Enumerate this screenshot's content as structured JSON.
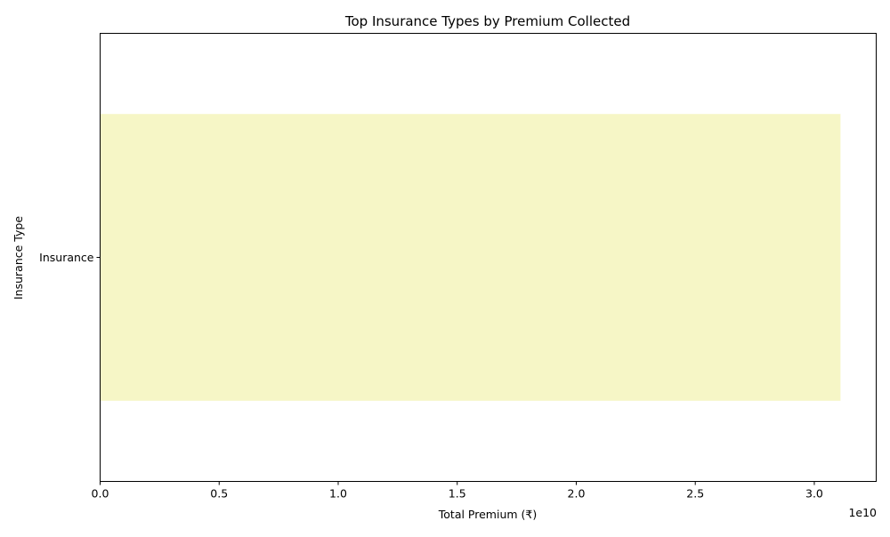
{
  "chart_data": {
    "type": "bar",
    "orientation": "horizontal",
    "title": "Top Insurance Types by Premium Collected",
    "xlabel": "Total Premium (₹)",
    "ylabel": "Insurance Type",
    "categories": [
      "Insurance"
    ],
    "values": [
      31100000000
    ],
    "xlim": [
      0,
      32600000000
    ],
    "x_ticks": [
      0,
      5000000000,
      10000000000,
      15000000000,
      20000000000,
      25000000000,
      30000000000
    ],
    "x_tick_labels": [
      "0.0",
      "0.5",
      "1.0",
      "1.5",
      "2.0",
      "2.5",
      "3.0"
    ],
    "x_offset_label": "1e10",
    "bar_color": "#f6f6c6",
    "grid": false,
    "legend": "none"
  }
}
